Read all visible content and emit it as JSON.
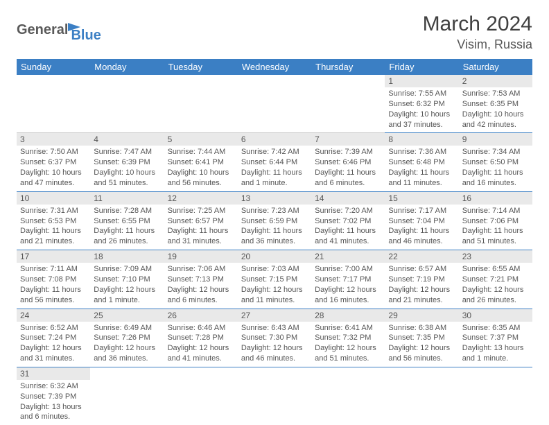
{
  "logo": {
    "part1": "General",
    "part2": "Blue"
  },
  "title": "March 2024",
  "location": "Visim, Russia",
  "colors": {
    "header_bg": "#3b7fc4",
    "header_text": "#ffffff",
    "daynum_bg": "#e9e9e9",
    "border": "#3b7fc4",
    "text": "#555555"
  },
  "weekdays": [
    "Sunday",
    "Monday",
    "Tuesday",
    "Wednesday",
    "Thursday",
    "Friday",
    "Saturday"
  ],
  "weeks": [
    [
      {
        "n": "",
        "sr": "",
        "ss": "",
        "dl": ""
      },
      {
        "n": "",
        "sr": "",
        "ss": "",
        "dl": ""
      },
      {
        "n": "",
        "sr": "",
        "ss": "",
        "dl": ""
      },
      {
        "n": "",
        "sr": "",
        "ss": "",
        "dl": ""
      },
      {
        "n": "",
        "sr": "",
        "ss": "",
        "dl": ""
      },
      {
        "n": "1",
        "sr": "Sunrise: 7:55 AM",
        "ss": "Sunset: 6:32 PM",
        "dl": "Daylight: 10 hours and 37 minutes."
      },
      {
        "n": "2",
        "sr": "Sunrise: 7:53 AM",
        "ss": "Sunset: 6:35 PM",
        "dl": "Daylight: 10 hours and 42 minutes."
      }
    ],
    [
      {
        "n": "3",
        "sr": "Sunrise: 7:50 AM",
        "ss": "Sunset: 6:37 PM",
        "dl": "Daylight: 10 hours and 47 minutes."
      },
      {
        "n": "4",
        "sr": "Sunrise: 7:47 AM",
        "ss": "Sunset: 6:39 PM",
        "dl": "Daylight: 10 hours and 51 minutes."
      },
      {
        "n": "5",
        "sr": "Sunrise: 7:44 AM",
        "ss": "Sunset: 6:41 PM",
        "dl": "Daylight: 10 hours and 56 minutes."
      },
      {
        "n": "6",
        "sr": "Sunrise: 7:42 AM",
        "ss": "Sunset: 6:44 PM",
        "dl": "Daylight: 11 hours and 1 minute."
      },
      {
        "n": "7",
        "sr": "Sunrise: 7:39 AM",
        "ss": "Sunset: 6:46 PM",
        "dl": "Daylight: 11 hours and 6 minutes."
      },
      {
        "n": "8",
        "sr": "Sunrise: 7:36 AM",
        "ss": "Sunset: 6:48 PM",
        "dl": "Daylight: 11 hours and 11 minutes."
      },
      {
        "n": "9",
        "sr": "Sunrise: 7:34 AM",
        "ss": "Sunset: 6:50 PM",
        "dl": "Daylight: 11 hours and 16 minutes."
      }
    ],
    [
      {
        "n": "10",
        "sr": "Sunrise: 7:31 AM",
        "ss": "Sunset: 6:53 PM",
        "dl": "Daylight: 11 hours and 21 minutes."
      },
      {
        "n": "11",
        "sr": "Sunrise: 7:28 AM",
        "ss": "Sunset: 6:55 PM",
        "dl": "Daylight: 11 hours and 26 minutes."
      },
      {
        "n": "12",
        "sr": "Sunrise: 7:25 AM",
        "ss": "Sunset: 6:57 PM",
        "dl": "Daylight: 11 hours and 31 minutes."
      },
      {
        "n": "13",
        "sr": "Sunrise: 7:23 AM",
        "ss": "Sunset: 6:59 PM",
        "dl": "Daylight: 11 hours and 36 minutes."
      },
      {
        "n": "14",
        "sr": "Sunrise: 7:20 AM",
        "ss": "Sunset: 7:02 PM",
        "dl": "Daylight: 11 hours and 41 minutes."
      },
      {
        "n": "15",
        "sr": "Sunrise: 7:17 AM",
        "ss": "Sunset: 7:04 PM",
        "dl": "Daylight: 11 hours and 46 minutes."
      },
      {
        "n": "16",
        "sr": "Sunrise: 7:14 AM",
        "ss": "Sunset: 7:06 PM",
        "dl": "Daylight: 11 hours and 51 minutes."
      }
    ],
    [
      {
        "n": "17",
        "sr": "Sunrise: 7:11 AM",
        "ss": "Sunset: 7:08 PM",
        "dl": "Daylight: 11 hours and 56 minutes."
      },
      {
        "n": "18",
        "sr": "Sunrise: 7:09 AM",
        "ss": "Sunset: 7:10 PM",
        "dl": "Daylight: 12 hours and 1 minute."
      },
      {
        "n": "19",
        "sr": "Sunrise: 7:06 AM",
        "ss": "Sunset: 7:13 PM",
        "dl": "Daylight: 12 hours and 6 minutes."
      },
      {
        "n": "20",
        "sr": "Sunrise: 7:03 AM",
        "ss": "Sunset: 7:15 PM",
        "dl": "Daylight: 12 hours and 11 minutes."
      },
      {
        "n": "21",
        "sr": "Sunrise: 7:00 AM",
        "ss": "Sunset: 7:17 PM",
        "dl": "Daylight: 12 hours and 16 minutes."
      },
      {
        "n": "22",
        "sr": "Sunrise: 6:57 AM",
        "ss": "Sunset: 7:19 PM",
        "dl": "Daylight: 12 hours and 21 minutes."
      },
      {
        "n": "23",
        "sr": "Sunrise: 6:55 AM",
        "ss": "Sunset: 7:21 PM",
        "dl": "Daylight: 12 hours and 26 minutes."
      }
    ],
    [
      {
        "n": "24",
        "sr": "Sunrise: 6:52 AM",
        "ss": "Sunset: 7:24 PM",
        "dl": "Daylight: 12 hours and 31 minutes."
      },
      {
        "n": "25",
        "sr": "Sunrise: 6:49 AM",
        "ss": "Sunset: 7:26 PM",
        "dl": "Daylight: 12 hours and 36 minutes."
      },
      {
        "n": "26",
        "sr": "Sunrise: 6:46 AM",
        "ss": "Sunset: 7:28 PM",
        "dl": "Daylight: 12 hours and 41 minutes."
      },
      {
        "n": "27",
        "sr": "Sunrise: 6:43 AM",
        "ss": "Sunset: 7:30 PM",
        "dl": "Daylight: 12 hours and 46 minutes."
      },
      {
        "n": "28",
        "sr": "Sunrise: 6:41 AM",
        "ss": "Sunset: 7:32 PM",
        "dl": "Daylight: 12 hours and 51 minutes."
      },
      {
        "n": "29",
        "sr": "Sunrise: 6:38 AM",
        "ss": "Sunset: 7:35 PM",
        "dl": "Daylight: 12 hours and 56 minutes."
      },
      {
        "n": "30",
        "sr": "Sunrise: 6:35 AM",
        "ss": "Sunset: 7:37 PM",
        "dl": "Daylight: 13 hours and 1 minute."
      }
    ],
    [
      {
        "n": "31",
        "sr": "Sunrise: 6:32 AM",
        "ss": "Sunset: 7:39 PM",
        "dl": "Daylight: 13 hours and 6 minutes."
      },
      {
        "n": "",
        "sr": "",
        "ss": "",
        "dl": ""
      },
      {
        "n": "",
        "sr": "",
        "ss": "",
        "dl": ""
      },
      {
        "n": "",
        "sr": "",
        "ss": "",
        "dl": ""
      },
      {
        "n": "",
        "sr": "",
        "ss": "",
        "dl": ""
      },
      {
        "n": "",
        "sr": "",
        "ss": "",
        "dl": ""
      },
      {
        "n": "",
        "sr": "",
        "ss": "",
        "dl": ""
      }
    ]
  ]
}
